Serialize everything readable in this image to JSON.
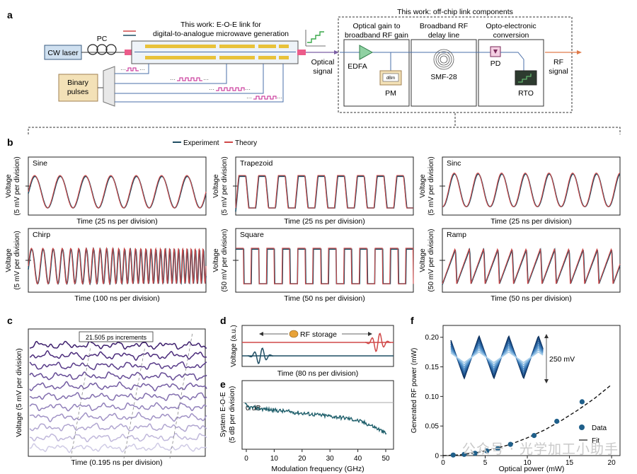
{
  "panel_a": {
    "label": "a",
    "work_title_line1": "This work: E-O-E link for",
    "work_title_line2": "digital-to-analogue microwave generation",
    "offchip_title": "This work: off-chip link components",
    "cw_laser": "CW laser",
    "pc": "PC",
    "binary_pulses_line1": "Binary",
    "binary_pulses_line2": "pulses",
    "optical_signal_line1": "Optical",
    "optical_signal_line2": "signal",
    "rf_signal_line1": "RF",
    "rf_signal_line2": "signal",
    "box1_title_line1": "Optical gain to",
    "box1_title_line2": "broadband RF gain",
    "box2_title_line1": "Broadband RF",
    "box2_title_line2": "delay line",
    "box3_title_line1": "Opto-electronic",
    "box3_title_line2": "conversion",
    "edfa": "EDFA",
    "pm": "PM",
    "dbm": "dBm",
    "smf": "SMF-28",
    "pd": "PD",
    "rto": "RTO"
  },
  "panel_b": {
    "label": "b",
    "legend_experiment": "Experiment",
    "legend_theory": "Theory",
    "colors": {
      "experiment": "#1f4e63",
      "theory": "#d04848"
    },
    "plots": [
      {
        "title": "Sine",
        "ylabel1": "Voltage",
        "ylabel2": "(5 mV per division)",
        "xlabel": "Time (25 ns per division)"
      },
      {
        "title": "Trapezoid",
        "ylabel1": "Voltage",
        "ylabel2": "(5 mV per division)",
        "xlabel": "Time (25 ns per division)"
      },
      {
        "title": "Sinc",
        "ylabel1": "Voltage",
        "ylabel2": "(5 mV per division)",
        "xlabel": "Time (25 ns per division)"
      },
      {
        "title": "Chirp",
        "ylabel1": "Voltage",
        "ylabel2": "(5 mV per division)",
        "xlabel": "Time (100 ns per division)"
      },
      {
        "title": "Square",
        "ylabel1": "Voltage",
        "ylabel2": "(50 mV per division)",
        "xlabel": "Time (50 ns per division)"
      },
      {
        "title": "Ramp",
        "ylabel1": "Voltage",
        "ylabel2": "(50 mV per division)",
        "xlabel": "Time (50 ns per division)"
      }
    ]
  },
  "panel_c": {
    "label": "c",
    "increment": "21.505 ps increments",
    "ylabel": "Voltage (5 mV per division)",
    "xlabel": "Time (0.195 ns per division)"
  },
  "panel_d": {
    "label": "d",
    "storage": "RF storage",
    "ylabel": "Voltage (a.u.)",
    "xlabel": "Time (80 ns per division)"
  },
  "panel_e": {
    "label": "e",
    "zero_db": "0 dB",
    "ylabel1": "System E-O-E",
    "ylabel2": "(5 dB per division)",
    "xlabel": "Modulation frequency (GHz)",
    "xticks": [
      "0",
      "10",
      "20",
      "30",
      "40",
      "50"
    ]
  },
  "panel_f": {
    "label": "f",
    "ylabel": "Generated RF power (mW)",
    "xlabel": "Optical power (mW)",
    "scale": "250 mV",
    "legend_data": "Data",
    "legend_fit": "Fit",
    "xticks": [
      "0",
      "5",
      "10",
      "15",
      "20"
    ],
    "yticks": [
      "0",
      "0.05",
      "0.10",
      "0.15",
      "0.20"
    ]
  },
  "watermark": "公众号 · 光学加工小助手",
  "chart_data": {
    "type": "scatter",
    "title": "",
    "xlabel": "Optical power (mW)",
    "ylabel": "Generated RF power (mW)",
    "xlim": [
      0,
      21
    ],
    "ylim": [
      0,
      0.22
    ],
    "series": [
      {
        "name": "Data",
        "x": [
          1.2,
          2.5,
          3.8,
          5.2,
          6.5,
          8.0,
          10.8,
          13.5,
          16.5
        ],
        "y": [
          0.001,
          0.002,
          0.004,
          0.008,
          0.012,
          0.019,
          0.034,
          0.058,
          0.091
        ]
      },
      {
        "name": "Fit",
        "type": "line",
        "x": [
          0,
          2,
          4,
          6,
          8,
          10,
          12,
          14,
          16,
          18,
          20
        ],
        "y": [
          0,
          0.0012,
          0.005,
          0.011,
          0.019,
          0.03,
          0.043,
          0.059,
          0.077,
          0.097,
          0.12
        ]
      }
    ]
  }
}
